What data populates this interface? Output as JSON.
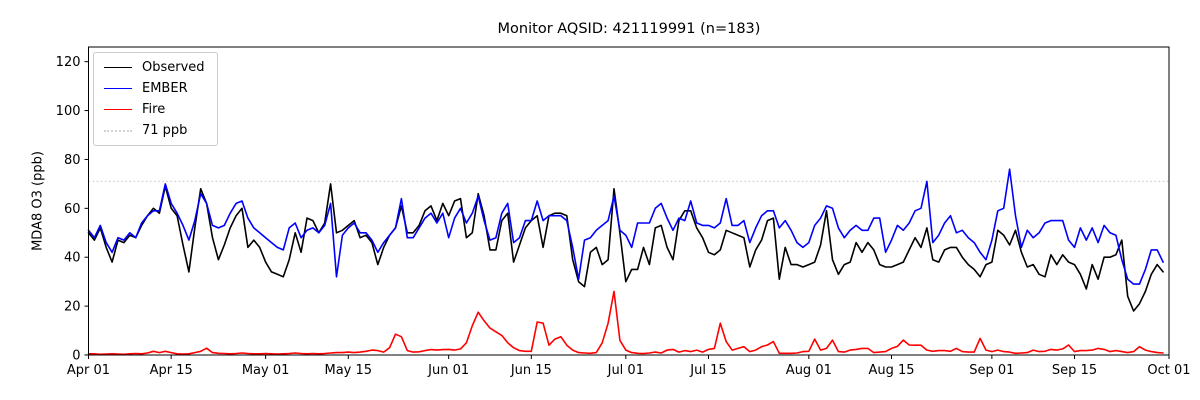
{
  "title": "Monitor AQSID: 421119991 (n=183)",
  "background_color": "#ffffff",
  "chart_data": {
    "type": "line",
    "title": "Monitor AQSID: 421119991 (n=183)",
    "xlabel": "",
    "ylabel": "MDA8 O3 (ppb)",
    "ylim": [
      0,
      126
    ],
    "yticks": [
      0,
      20,
      40,
      60,
      80,
      100,
      120
    ],
    "grid": false,
    "legend_position": "upper left",
    "x_unit": "days since Apr 01",
    "x_range_days": 183,
    "xticks": [
      {
        "label": "Apr 01",
        "day": 0
      },
      {
        "label": "Apr 15",
        "day": 14
      },
      {
        "label": "May 01",
        "day": 30
      },
      {
        "label": "May 15",
        "day": 44
      },
      {
        "label": "Jun 01",
        "day": 61
      },
      {
        "label": "Jun 15",
        "day": 75
      },
      {
        "label": "Jul 01",
        "day": 91
      },
      {
        "label": "Jul 15",
        "day": 105
      },
      {
        "label": "Aug 01",
        "day": 122
      },
      {
        "label": "Aug 15",
        "day": 136
      },
      {
        "label": "Sep 01",
        "day": 153
      },
      {
        "label": "Sep 15",
        "day": 167
      },
      {
        "label": "Oct 01",
        "day": 183
      }
    ],
    "threshold": {
      "label": "71 ppb",
      "value": 71,
      "color": "#d3d3d3",
      "style": "dotted"
    },
    "series": [
      {
        "name": "Observed",
        "color": "#000000",
        "values": [
          50,
          47,
          52,
          44,
          38,
          47,
          46,
          49,
          48,
          53,
          57,
          60,
          58,
          69,
          60,
          57,
          45,
          34,
          52,
          68,
          62,
          48,
          39,
          45,
          52,
          57,
          60,
          44,
          47,
          44,
          38,
          34,
          33,
          32,
          39,
          50,
          42,
          56,
          55,
          50,
          54,
          70,
          50,
          51,
          53,
          55,
          48,
          49,
          46,
          37,
          44,
          49,
          52,
          61,
          50,
          50,
          53,
          59,
          61,
          55,
          62,
          57,
          63,
          64,
          48,
          50,
          66,
          57,
          43,
          43,
          55,
          58,
          38,
          45,
          52,
          55,
          57,
          44,
          57,
          58,
          58,
          57,
          39,
          30,
          28,
          42,
          44,
          37,
          39,
          68,
          50,
          30,
          35,
          35,
          44,
          37,
          52,
          53,
          44,
          39,
          55,
          59,
          59,
          52,
          48,
          42,
          41,
          43,
          51,
          50,
          49,
          48,
          36,
          43,
          47,
          55,
          56,
          31,
          44,
          37,
          37,
          36,
          37,
          38,
          45,
          59,
          39,
          33,
          37,
          38,
          46,
          42,
          46,
          43,
          37,
          36,
          36,
          37,
          38,
          43,
          48,
          44,
          52,
          39,
          38,
          43,
          44,
          44,
          40,
          37,
          35,
          32,
          37,
          38,
          51,
          49,
          45,
          51,
          42,
          36,
          37,
          33,
          32,
          41,
          37,
          41,
          38,
          37,
          33,
          27,
          37,
          31,
          40,
          40,
          41,
          47,
          24,
          18,
          21,
          26,
          33,
          37,
          34
        ]
      },
      {
        "name": "EMBER",
        "color": "#0000ff",
        "values": [
          51,
          48,
          53,
          46,
          42,
          48,
          47,
          50,
          48,
          54,
          57,
          59,
          59,
          70,
          62,
          58,
          53,
          47,
          55,
          66,
          62,
          53,
          52,
          53,
          58,
          62,
          63,
          56,
          52,
          50,
          48,
          46,
          44,
          43,
          52,
          54,
          48,
          51,
          52,
          50,
          53,
          62,
          32,
          49,
          52,
          54,
          50,
          50,
          47,
          42,
          46,
          49,
          52,
          64,
          48,
          48,
          52,
          56,
          58,
          54,
          58,
          48,
          56,
          60,
          54,
          58,
          65,
          55,
          47,
          48,
          58,
          62,
          46,
          48,
          55,
          55,
          63,
          55,
          57,
          57,
          57,
          55,
          44,
          31,
          47,
          48,
          51,
          53,
          55,
          65,
          51,
          49,
          44,
          54,
          54,
          54,
          60,
          62,
          56,
          51,
          56,
          55,
          63,
          54,
          53,
          53,
          52,
          54,
          64,
          53,
          53,
          55,
          46,
          52,
          57,
          59,
          59,
          52,
          55,
          51,
          46,
          44,
          46,
          53,
          56,
          61,
          60,
          52,
          48,
          51,
          53,
          51,
          51,
          56,
          56,
          42,
          47,
          53,
          51,
          54,
          59,
          60,
          71,
          46,
          49,
          54,
          57,
          50,
          51,
          48,
          46,
          42,
          39,
          47,
          59,
          60,
          76,
          57,
          44,
          51,
          48,
          50,
          54,
          55,
          55,
          55,
          47,
          44,
          52,
          47,
          52,
          46,
          53,
          50,
          49,
          39,
          31,
          29,
          29,
          35,
          43,
          43,
          38
        ]
      },
      {
        "name": "Fire",
        "color": "#ff0000",
        "values": [
          0.5,
          0.5,
          0.3,
          0.4,
          0.5,
          0.4,
          0.3,
          0.5,
          0.6,
          0.5,
          0.8,
          1.5,
          1.0,
          1.5,
          1.0,
          0.5,
          0.4,
          0.5,
          1.0,
          1.5,
          2.8,
          1.0,
          0.7,
          0.6,
          0.5,
          0.6,
          0.8,
          0.6,
          0.5,
          0.5,
          0.6,
          0.5,
          0.4,
          0.5,
          0.6,
          0.8,
          0.6,
          0.5,
          0.6,
          0.5,
          0.6,
          0.8,
          1.0,
          1.0,
          1.2,
          1.0,
          1.2,
          1.5,
          2.0,
          1.8,
          1.2,
          3.0,
          8.5,
          7.5,
          1.8,
          1.2,
          1.3,
          1.8,
          2.2,
          2.0,
          2.2,
          2.3,
          2.0,
          2.5,
          5.0,
          12.0,
          17.5,
          14.0,
          11.0,
          9.5,
          8.0,
          5.0,
          3.0,
          1.8,
          1.5,
          1.5,
          13.5,
          13.0,
          4.0,
          6.5,
          7.5,
          4.0,
          2.0,
          1.0,
          0.8,
          0.7,
          1.0,
          5.0,
          13.0,
          26.0,
          6.0,
          2.0,
          1.0,
          0.7,
          0.6,
          0.8,
          1.2,
          0.8,
          2.0,
          2.3,
          1.2,
          1.8,
          1.4,
          2.0,
          1.2,
          2.3,
          2.7,
          13.0,
          5.5,
          2.0,
          2.7,
          3.4,
          1.4,
          2.0,
          3.4,
          4.1,
          5.5,
          0.7,
          0.7,
          0.7,
          0.8,
          1.4,
          1.5,
          6.5,
          2.0,
          2.7,
          6.1,
          1.4,
          1.2,
          2.0,
          2.3,
          2.7,
          2.7,
          1.0,
          1.2,
          1.4,
          2.7,
          3.5,
          6.1,
          4.1,
          4.0,
          4.0,
          2.0,
          1.5,
          1.8,
          1.8,
          1.5,
          2.7,
          1.4,
          1.2,
          1.2,
          6.8,
          2.0,
          1.4,
          2.0,
          1.4,
          1.2,
          0.7,
          0.8,
          1.0,
          2.0,
          1.4,
          1.5,
          2.3,
          2.0,
          2.5,
          4.1,
          1.4,
          1.8,
          1.8,
          2.0,
          2.7,
          2.3,
          1.4,
          1.8,
          1.4,
          1.0,
          1.4,
          3.4,
          2.0,
          1.4,
          1.0,
          0.8
        ]
      }
    ]
  }
}
